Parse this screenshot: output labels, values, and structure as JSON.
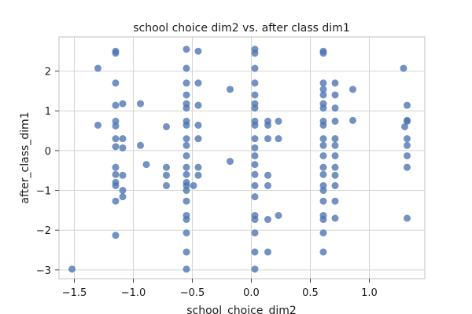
{
  "chart_data": {
    "type": "scatter",
    "title": "school choice dim2 vs. after class dim1",
    "xlabel": "school_choice_dim2",
    "ylabel": "after_class_dim1",
    "xlim": [
      -1.63,
      1.47
    ],
    "ylim": [
      -3.22,
      2.86
    ],
    "xticks": [
      -1.5,
      -1.0,
      -0.5,
      0.0,
      0.5,
      1.0
    ],
    "xtick_labels": [
      "−1.5",
      "−1.0",
      "−0.5",
      "0.0",
      "0.5",
      "1.0"
    ],
    "yticks": [
      -3,
      -2,
      -1,
      0,
      1,
      2
    ],
    "ytick_labels": [
      "−3",
      "−2",
      "−1",
      "0",
      "1",
      "2"
    ],
    "grid": true,
    "marker_color": "#4c72b0",
    "points": [
      {
        "x": -1.52,
        "y": -2.98
      },
      {
        "x": -1.3,
        "y": 2.07
      },
      {
        "x": -1.3,
        "y": 0.64
      },
      {
        "x": -1.15,
        "y": 2.5
      },
      {
        "x": -1.15,
        "y": 2.45
      },
      {
        "x": -1.15,
        "y": 1.7
      },
      {
        "x": -1.15,
        "y": 1.14
      },
      {
        "x": -1.15,
        "y": 0.74
      },
      {
        "x": -1.15,
        "y": 0.62
      },
      {
        "x": -1.15,
        "y": 0.3
      },
      {
        "x": -1.15,
        "y": 0.1
      },
      {
        "x": -1.15,
        "y": -0.42
      },
      {
        "x": -1.15,
        "y": -0.6
      },
      {
        "x": -1.15,
        "y": -0.8
      },
      {
        "x": -1.15,
        "y": -0.88
      },
      {
        "x": -1.15,
        "y": -1.27
      },
      {
        "x": -1.15,
        "y": -2.13
      },
      {
        "x": -1.09,
        "y": 1.18
      },
      {
        "x": -1.09,
        "y": 0.3
      },
      {
        "x": -1.09,
        "y": 0.07
      },
      {
        "x": -1.09,
        "y": -0.62
      },
      {
        "x": -1.09,
        "y": -1.0
      },
      {
        "x": -1.09,
        "y": -1.16
      },
      {
        "x": -0.94,
        "y": 1.18
      },
      {
        "x": -0.94,
        "y": 0.13
      },
      {
        "x": -0.89,
        "y": -0.35
      },
      {
        "x": -0.72,
        "y": 0.6
      },
      {
        "x": -0.72,
        "y": -0.42
      },
      {
        "x": -0.72,
        "y": -0.62
      },
      {
        "x": -0.72,
        "y": -0.88
      },
      {
        "x": -0.55,
        "y": 2.55
      },
      {
        "x": -0.55,
        "y": 2.07
      },
      {
        "x": -0.55,
        "y": 1.7
      },
      {
        "x": -0.55,
        "y": 1.4
      },
      {
        "x": -0.55,
        "y": 1.18
      },
      {
        "x": -0.55,
        "y": 1.07
      },
      {
        "x": -0.55,
        "y": 0.74
      },
      {
        "x": -0.55,
        "y": 0.64
      },
      {
        "x": -0.55,
        "y": 0.3
      },
      {
        "x": -0.55,
        "y": 0.13
      },
      {
        "x": -0.55,
        "y": -0.13
      },
      {
        "x": -0.55,
        "y": -0.42
      },
      {
        "x": -0.55,
        "y": -0.6
      },
      {
        "x": -0.55,
        "y": -0.8
      },
      {
        "x": -0.55,
        "y": -0.88
      },
      {
        "x": -0.55,
        "y": -1.0
      },
      {
        "x": -0.55,
        "y": -1.27
      },
      {
        "x": -0.55,
        "y": -1.63
      },
      {
        "x": -0.55,
        "y": -1.73
      },
      {
        "x": -0.55,
        "y": -2.07
      },
      {
        "x": -0.55,
        "y": -2.55
      },
      {
        "x": -0.55,
        "y": -2.98
      },
      {
        "x": -0.49,
        "y": -0.88
      },
      {
        "x": -0.45,
        "y": 2.5
      },
      {
        "x": -0.45,
        "y": 1.7
      },
      {
        "x": -0.45,
        "y": 1.14
      },
      {
        "x": -0.45,
        "y": 0.64
      },
      {
        "x": -0.45,
        "y": 0.3
      },
      {
        "x": -0.45,
        "y": -0.42
      },
      {
        "x": -0.45,
        "y": -0.62
      },
      {
        "x": -0.18,
        "y": 1.54
      },
      {
        "x": -0.18,
        "y": -0.27
      },
      {
        "x": 0.03,
        "y": 2.55
      },
      {
        "x": 0.03,
        "y": 2.45
      },
      {
        "x": 0.03,
        "y": 2.07
      },
      {
        "x": 0.03,
        "y": 1.7
      },
      {
        "x": 0.03,
        "y": 1.4
      },
      {
        "x": 0.03,
        "y": 1.18
      },
      {
        "x": 0.03,
        "y": 1.07
      },
      {
        "x": 0.03,
        "y": 0.74
      },
      {
        "x": 0.03,
        "y": 0.64
      },
      {
        "x": 0.03,
        "y": 0.3
      },
      {
        "x": 0.03,
        "y": 0.07
      },
      {
        "x": 0.03,
        "y": -0.13
      },
      {
        "x": 0.03,
        "y": -0.35
      },
      {
        "x": 0.03,
        "y": -0.6
      },
      {
        "x": 0.03,
        "y": -0.88
      },
      {
        "x": 0.03,
        "y": -1.16
      },
      {
        "x": 0.03,
        "y": -1.63
      },
      {
        "x": 0.03,
        "y": -1.73
      },
      {
        "x": 0.03,
        "y": -2.07
      },
      {
        "x": 0.03,
        "y": -2.55
      },
      {
        "x": 0.03,
        "y": -2.98
      },
      {
        "x": 0.14,
        "y": 0.74
      },
      {
        "x": 0.14,
        "y": 0.64
      },
      {
        "x": 0.14,
        "y": 0.3
      },
      {
        "x": 0.14,
        "y": -0.62
      },
      {
        "x": 0.14,
        "y": -0.88
      },
      {
        "x": 0.14,
        "y": -1.73
      },
      {
        "x": 0.14,
        "y": -2.55
      },
      {
        "x": 0.23,
        "y": 0.74
      },
      {
        "x": 0.23,
        "y": 0.3
      },
      {
        "x": 0.23,
        "y": -1.63
      },
      {
        "x": 0.61,
        "y": 2.5
      },
      {
        "x": 0.61,
        "y": 2.45
      },
      {
        "x": 0.61,
        "y": 1.7
      },
      {
        "x": 0.61,
        "y": 1.54
      },
      {
        "x": 0.61,
        "y": 1.4
      },
      {
        "x": 0.61,
        "y": 1.18
      },
      {
        "x": 0.61,
        "y": 1.07
      },
      {
        "x": 0.61,
        "y": 0.74
      },
      {
        "x": 0.61,
        "y": 0.64
      },
      {
        "x": 0.61,
        "y": 0.3
      },
      {
        "x": 0.61,
        "y": 0.13
      },
      {
        "x": 0.61,
        "y": -0.13
      },
      {
        "x": 0.61,
        "y": -0.42
      },
      {
        "x": 0.61,
        "y": -0.6
      },
      {
        "x": 0.61,
        "y": -0.88
      },
      {
        "x": 0.61,
        "y": -1.0
      },
      {
        "x": 0.61,
        "y": -1.27
      },
      {
        "x": 0.61,
        "y": -1.63
      },
      {
        "x": 0.61,
        "y": -1.73
      },
      {
        "x": 0.61,
        "y": -2.07
      },
      {
        "x": 0.61,
        "y": -2.55
      },
      {
        "x": 0.71,
        "y": 1.7
      },
      {
        "x": 0.71,
        "y": 1.4
      },
      {
        "x": 0.71,
        "y": 1.07
      },
      {
        "x": 0.71,
        "y": 0.74
      },
      {
        "x": 0.71,
        "y": 0.3
      },
      {
        "x": 0.71,
        "y": 0.13
      },
      {
        "x": 0.71,
        "y": -0.13
      },
      {
        "x": 0.71,
        "y": -0.42
      },
      {
        "x": 0.71,
        "y": -0.62
      },
      {
        "x": 0.71,
        "y": -0.88
      },
      {
        "x": 0.71,
        "y": -1.27
      },
      {
        "x": 0.71,
        "y": -1.7
      },
      {
        "x": 0.86,
        "y": 1.54
      },
      {
        "x": 0.86,
        "y": 0.76
      },
      {
        "x": 1.29,
        "y": 2.07
      },
      {
        "x": 1.3,
        "y": 0.6
      },
      {
        "x": 1.32,
        "y": 1.14
      },
      {
        "x": 1.32,
        "y": 0.76
      },
      {
        "x": 1.32,
        "y": 0.74
      },
      {
        "x": 1.32,
        "y": 0.3
      },
      {
        "x": 1.32,
        "y": 0.13
      },
      {
        "x": 1.32,
        "y": -0.13
      },
      {
        "x": 1.32,
        "y": -0.42
      },
      {
        "x": 1.32,
        "y": -1.7
      }
    ]
  }
}
